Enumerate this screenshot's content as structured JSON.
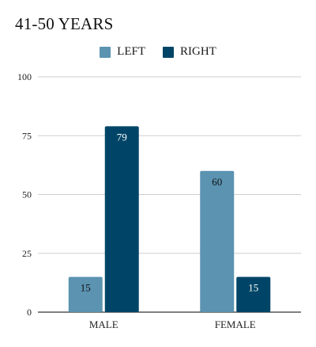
{
  "chart_data": {
    "type": "bar",
    "title": "41-50 YEARS",
    "categories": [
      "MALE",
      "FEMALE"
    ],
    "series": [
      {
        "name": "LEFT",
        "values": [
          15,
          60
        ],
        "color": "#5b93b1",
        "label_color": "#111111"
      },
      {
        "name": "RIGHT",
        "values": [
          79,
          15
        ],
        "color": "#004567",
        "label_color": "#ffffff"
      }
    ],
    "ylim": [
      0,
      100
    ],
    "yticks": [
      0,
      25,
      50,
      75,
      100
    ],
    "grid": true,
    "legend_position": "top-center"
  }
}
